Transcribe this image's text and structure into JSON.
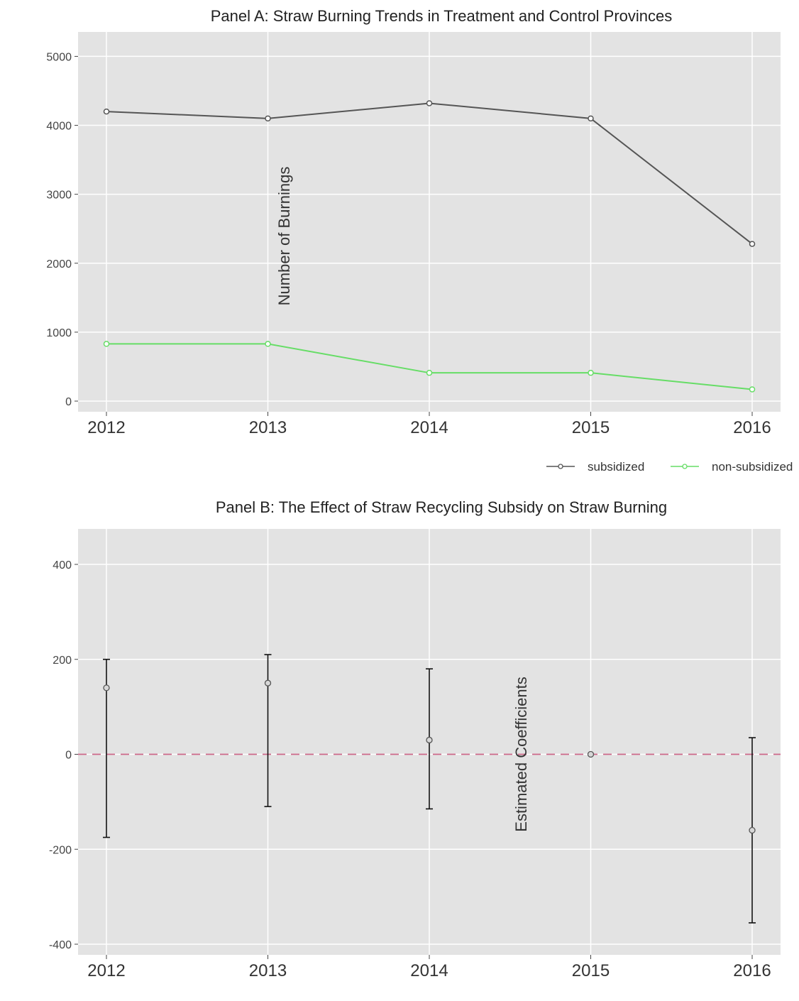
{
  "chart_data": [
    {
      "type": "line",
      "title": "Panel A: Straw Burning Trends in Treatment and Control Provinces",
      "ylabel": "Number of Burnings",
      "xlabel": "",
      "x": [
        2012,
        2013,
        2014,
        2015,
        2016
      ],
      "x_tick_labels": [
        "2012",
        "2013",
        "2014",
        "2015",
        "2016"
      ],
      "y_ticks": [
        0,
        1000,
        2000,
        3000,
        4000,
        5000
      ],
      "y_tick_labels": [
        "0",
        "1000",
        "2000",
        "3000",
        "4000",
        "5000"
      ],
      "ylim": [
        0,
        5200
      ],
      "series": [
        {
          "name": "subsidized",
          "color": "#555555",
          "values": [
            4200,
            4100,
            4320,
            4100,
            2280
          ]
        },
        {
          "name": "non-subsidized",
          "color": "#66dd66",
          "values": [
            830,
            830,
            410,
            410,
            170
          ]
        }
      ],
      "legend_position": "bottom-right",
      "grid": true
    },
    {
      "type": "scatter",
      "title": "Panel B: The Effect of Straw Recycling Subsidy on Straw Burning",
      "ylabel": "Estimated Coefficients",
      "xlabel": "",
      "x": [
        2012,
        2013,
        2014,
        2015,
        2016
      ],
      "x_tick_labels": [
        "2012",
        "2013",
        "2014",
        "2015",
        "2016"
      ],
      "y_ticks": [
        -400,
        -200,
        0,
        200,
        400
      ],
      "y_tick_labels": [
        "-400",
        "-200",
        "0",
        "200",
        "400"
      ],
      "ylim": [
        -400,
        400
      ],
      "estimates": [
        140,
        150,
        30,
        0,
        -160
      ],
      "ci_lower": [
        -175,
        -110,
        -115,
        0,
        -355
      ],
      "ci_upper": [
        200,
        210,
        180,
        0,
        35
      ],
      "reference_line_y": 0,
      "reference_line_color": "#cc6688",
      "grid": true
    }
  ]
}
